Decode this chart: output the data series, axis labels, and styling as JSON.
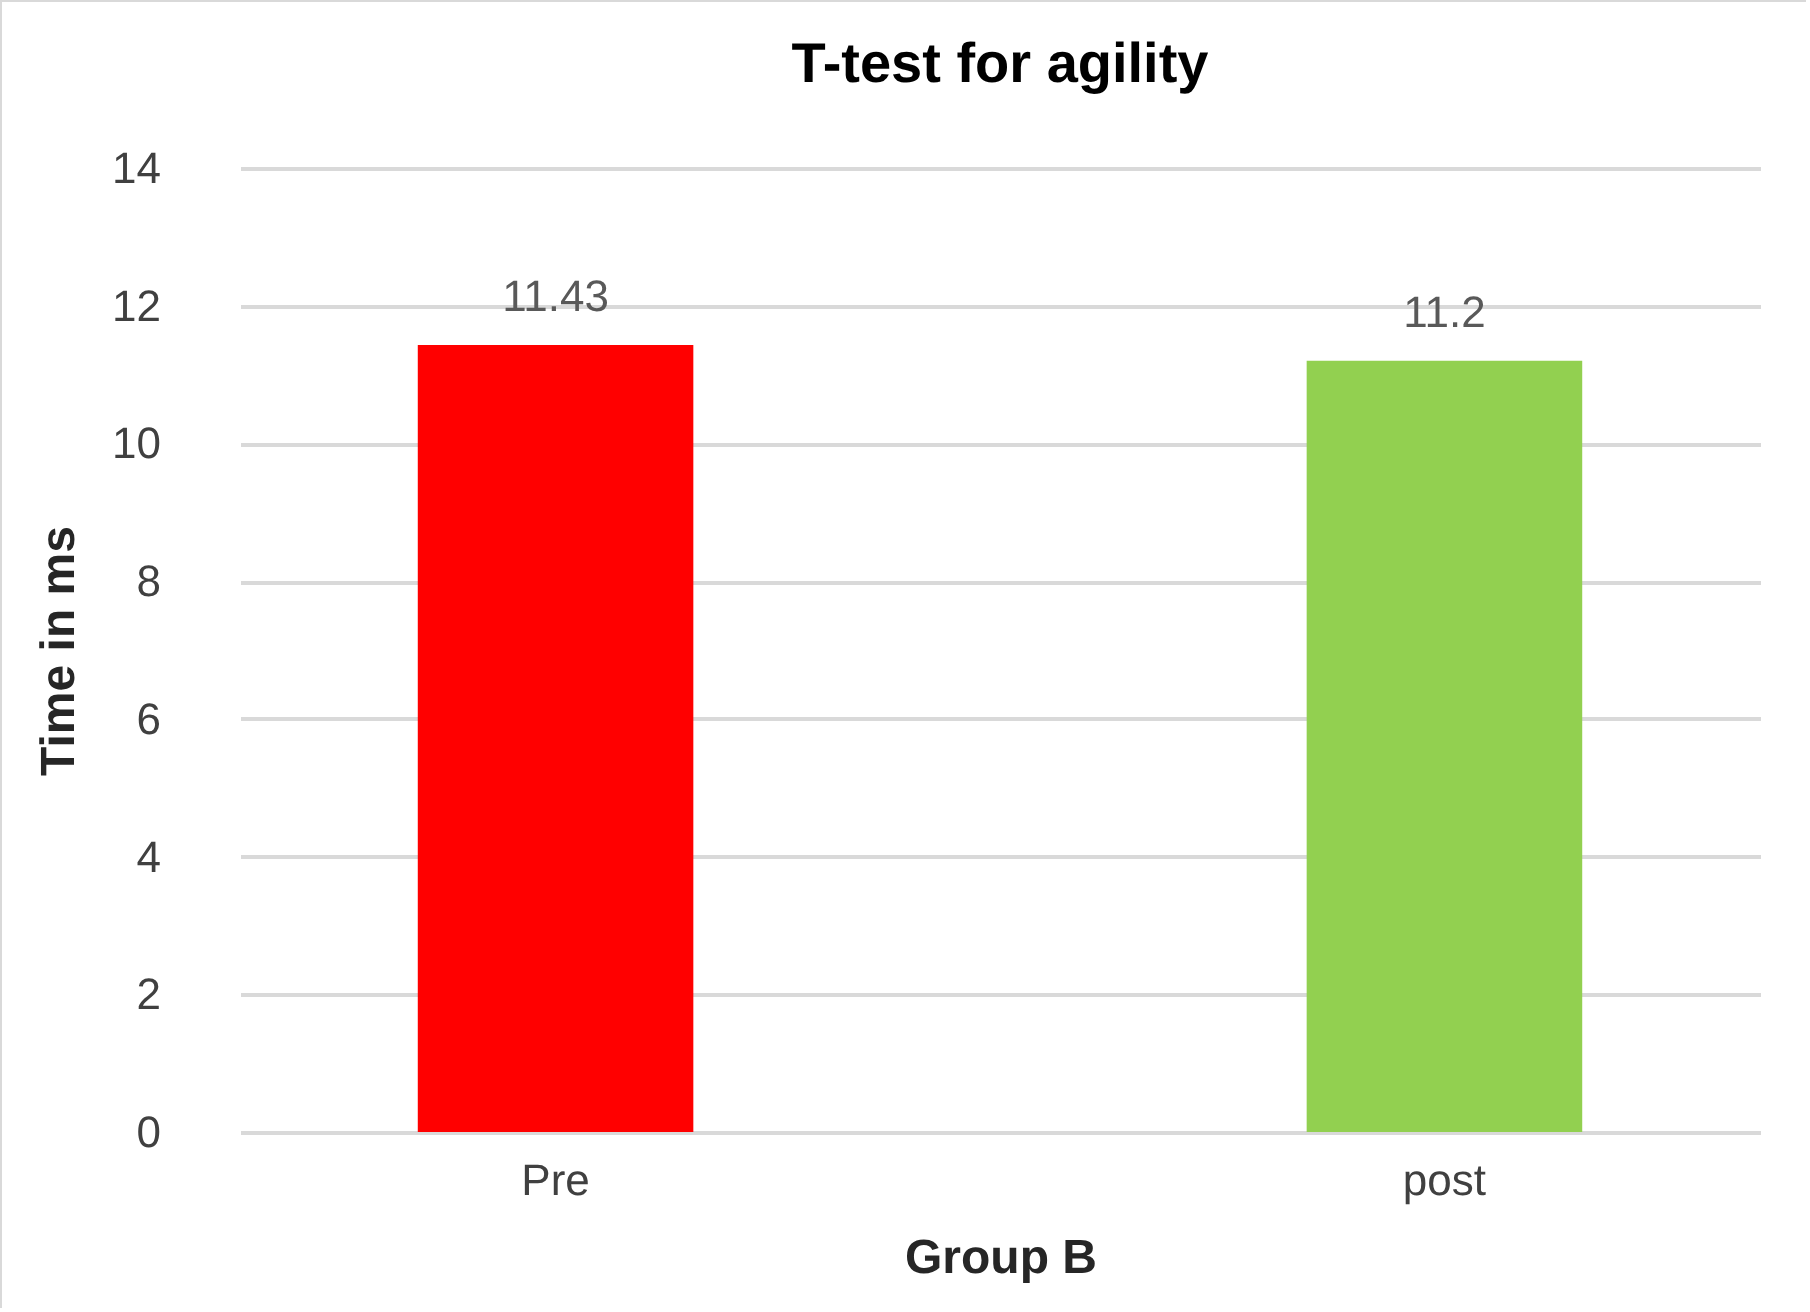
{
  "chart_data": {
    "type": "bar",
    "title": "T-test for agility",
    "xlabel": "Group B",
    "ylabel": "Time in ms",
    "categories": [
      "Pre",
      "post"
    ],
    "values": [
      11.43,
      11.2
    ],
    "colors": [
      "#ff0000",
      "#92d050"
    ],
    "ylim": [
      0,
      14
    ],
    "yticks": [
      0,
      2,
      4,
      6,
      8,
      10,
      12,
      14
    ],
    "grid": "y",
    "data_labels": true
  }
}
